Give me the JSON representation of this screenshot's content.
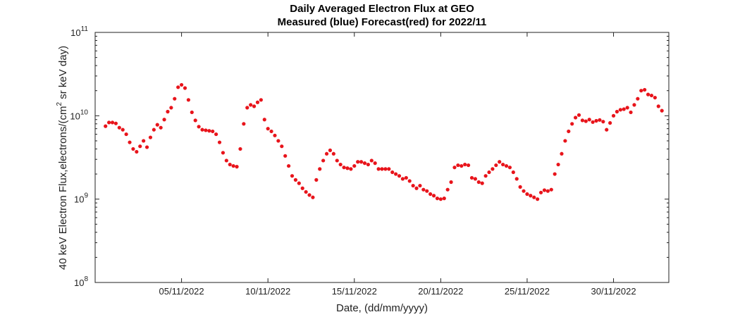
{
  "chart_data": {
    "type": "scatter",
    "title": "Daily Averaged Electron Flux at GEO",
    "subtitle": "Measured (blue) Forecast(red) for 2022/11",
    "xlabel": "Date, (dd/mm/yyyy)",
    "ylabel_main": "40 keV Electron Flux,electrons/(cm",
    "ylabel_sup": "2",
    "ylabel_tail": " sr keV day)",
    "y_scale": "log",
    "ylim": [
      100000000.0,
      100000000000.0
    ],
    "xlim": [
      0.6,
      32.8
    ],
    "x_unit": "day of November 2022",
    "grid": false,
    "y_ticks": [
      {
        "value": 100000000.0,
        "base": "10",
        "exp": "8"
      },
      {
        "value": 1000000000.0,
        "base": "10",
        "exp": "9"
      },
      {
        "value": 10000000000.0,
        "base": "10",
        "exp": "10"
      },
      {
        "value": 100000000000.0,
        "base": "10",
        "exp": "11"
      }
    ],
    "x_ticks": [
      {
        "value": 5,
        "label": "05/11/2022"
      },
      {
        "value": 10,
        "label": "10/11/2022"
      },
      {
        "value": 15,
        "label": "15/11/2022"
      },
      {
        "value": 20,
        "label": "20/11/2022"
      },
      {
        "value": 25,
        "label": "25/11/2022"
      },
      {
        "value": 30,
        "label": "30/11/2022"
      }
    ],
    "series": [
      {
        "color": "#e8141b",
        "marker": "dot",
        "points": [
          [
            0.6,
            7500000000.0
          ],
          [
            0.8,
            8300000000.0
          ],
          [
            1.0,
            8300000000.0
          ],
          [
            1.2,
            8100000000.0
          ],
          [
            1.4,
            7200000000.0
          ],
          [
            1.6,
            6800000000.0
          ],
          [
            1.8,
            6000000000.0
          ],
          [
            2.0,
            4800000000.0
          ],
          [
            2.2,
            4000000000.0
          ],
          [
            2.4,
            3700000000.0
          ],
          [
            2.6,
            4300000000.0
          ],
          [
            2.8,
            5000000000.0
          ],
          [
            3.0,
            4200000000.0
          ],
          [
            3.2,
            5500000000.0
          ],
          [
            3.4,
            6800000000.0
          ],
          [
            3.6,
            7800000000.0
          ],
          [
            3.8,
            7200000000.0
          ],
          [
            4.0,
            9000000000.0
          ],
          [
            4.2,
            11200000000.0
          ],
          [
            4.4,
            12500000000.0
          ],
          [
            4.6,
            16000000000.0
          ],
          [
            4.8,
            22000000000.0
          ],
          [
            5.0,
            23500000000.0
          ],
          [
            5.2,
            21500000000.0
          ],
          [
            5.4,
            15500000000.0
          ],
          [
            5.6,
            11000000000.0
          ],
          [
            5.8,
            8800000000.0
          ],
          [
            6.0,
            7400000000.0
          ],
          [
            6.2,
            6800000000.0
          ],
          [
            6.4,
            6700000000.0
          ],
          [
            6.6,
            6600000000.0
          ],
          [
            6.8,
            6500000000.0
          ],
          [
            7.0,
            6000000000.0
          ],
          [
            7.2,
            4800000000.0
          ],
          [
            7.4,
            3600000000.0
          ],
          [
            7.6,
            2900000000.0
          ],
          [
            7.8,
            2600000000.0
          ],
          [
            8.0,
            2500000000.0
          ],
          [
            8.2,
            2450000000.0
          ],
          [
            8.4,
            4000000000.0
          ],
          [
            8.6,
            8000000000.0
          ],
          [
            8.8,
            12500000000.0
          ],
          [
            9.0,
            13500000000.0
          ],
          [
            9.2,
            13000000000.0
          ],
          [
            9.4,
            14500000000.0
          ],
          [
            9.6,
            15500000000.0
          ],
          [
            9.8,
            9000000000.0
          ],
          [
            10.0,
            7000000000.0
          ],
          [
            10.2,
            6500000000.0
          ],
          [
            10.4,
            5800000000.0
          ],
          [
            10.6,
            5000000000.0
          ],
          [
            10.8,
            4300000000.0
          ],
          [
            11.0,
            3300000000.0
          ],
          [
            11.2,
            2500000000.0
          ],
          [
            11.4,
            1900000000.0
          ],
          [
            11.6,
            1700000000.0
          ],
          [
            11.8,
            1550000000.0
          ],
          [
            12.0,
            1350000000.0
          ],
          [
            12.2,
            1220000000.0
          ],
          [
            12.4,
            1120000000.0
          ],
          [
            12.6,
            1050000000.0
          ],
          [
            12.8,
            1700000000.0
          ],
          [
            13.0,
            2300000000.0
          ],
          [
            13.2,
            2900000000.0
          ],
          [
            13.4,
            3500000000.0
          ],
          [
            13.6,
            3850000000.0
          ],
          [
            13.8,
            3500000000.0
          ],
          [
            14.0,
            2900000000.0
          ],
          [
            14.2,
            2600000000.0
          ],
          [
            14.4,
            2400000000.0
          ],
          [
            14.6,
            2350000000.0
          ],
          [
            14.8,
            2300000000.0
          ],
          [
            15.0,
            2500000000.0
          ],
          [
            15.2,
            2800000000.0
          ],
          [
            15.4,
            2800000000.0
          ],
          [
            15.6,
            2700000000.0
          ],
          [
            15.8,
            2600000000.0
          ],
          [
            16.0,
            2900000000.0
          ],
          [
            16.2,
            2700000000.0
          ],
          [
            16.4,
            2300000000.0
          ],
          [
            16.6,
            2300000000.0
          ],
          [
            16.8,
            2300000000.0
          ],
          [
            17.0,
            2300000000.0
          ],
          [
            17.2,
            2100000000.0
          ],
          [
            17.4,
            2000000000.0
          ],
          [
            17.6,
            1900000000.0
          ],
          [
            17.8,
            1750000000.0
          ],
          [
            18.0,
            1800000000.0
          ],
          [
            18.2,
            1650000000.0
          ],
          [
            18.4,
            1450000000.0
          ],
          [
            18.6,
            1350000000.0
          ],
          [
            18.8,
            1450000000.0
          ],
          [
            19.0,
            1300000000.0
          ],
          [
            19.2,
            1250000000.0
          ],
          [
            19.4,
            1150000000.0
          ],
          [
            19.6,
            1100000000.0
          ],
          [
            19.8,
            1020000000.0
          ],
          [
            20.0,
            1000000000.0
          ],
          [
            20.2,
            1020000000.0
          ],
          [
            20.4,
            1300000000.0
          ],
          [
            20.6,
            1600000000.0
          ],
          [
            20.8,
            2400000000.0
          ],
          [
            21.0,
            2550000000.0
          ],
          [
            21.2,
            2500000000.0
          ],
          [
            21.4,
            2600000000.0
          ],
          [
            21.6,
            2550000000.0
          ],
          [
            21.8,
            1800000000.0
          ],
          [
            22.0,
            1750000000.0
          ],
          [
            22.2,
            1600000000.0
          ],
          [
            22.4,
            1550000000.0
          ],
          [
            22.6,
            1900000000.0
          ],
          [
            22.8,
            2100000000.0
          ],
          [
            23.0,
            2300000000.0
          ],
          [
            23.2,
            2550000000.0
          ],
          [
            23.4,
            2800000000.0
          ],
          [
            23.6,
            2600000000.0
          ],
          [
            23.8,
            2500000000.0
          ],
          [
            24.0,
            2400000000.0
          ],
          [
            24.2,
            2100000000.0
          ],
          [
            24.4,
            1750000000.0
          ],
          [
            24.6,
            1400000000.0
          ],
          [
            24.8,
            1250000000.0
          ],
          [
            25.0,
            1150000000.0
          ],
          [
            25.2,
            1100000000.0
          ],
          [
            25.4,
            1050000000.0
          ],
          [
            25.6,
            1000000000.0
          ],
          [
            25.8,
            1200000000.0
          ],
          [
            26.0,
            1280000000.0
          ],
          [
            26.2,
            1250000000.0
          ],
          [
            26.4,
            1300000000.0
          ],
          [
            26.6,
            2000000000.0
          ],
          [
            26.8,
            2600000000.0
          ],
          [
            27.0,
            3500000000.0
          ],
          [
            27.2,
            5000000000.0
          ],
          [
            27.4,
            6500000000.0
          ],
          [
            27.6,
            8000000000.0
          ],
          [
            27.8,
            9500000000.0
          ],
          [
            28.0,
            10200000000.0
          ],
          [
            28.2,
            8800000000.0
          ],
          [
            28.4,
            8600000000.0
          ],
          [
            28.6,
            9000000000.0
          ],
          [
            28.8,
            8400000000.0
          ],
          [
            29.0,
            8700000000.0
          ],
          [
            29.2,
            8900000000.0
          ],
          [
            29.4,
            8500000000.0
          ],
          [
            29.6,
            6800000000.0
          ],
          [
            29.8,
            8200000000.0
          ],
          [
            30.0,
            10000000000.0
          ],
          [
            30.2,
            11200000000.0
          ],
          [
            30.4,
            11800000000.0
          ],
          [
            30.6,
            12000000000.0
          ],
          [
            30.8,
            12500000000.0
          ],
          [
            31.0,
            11000000000.0
          ],
          [
            31.2,
            13500000000.0
          ],
          [
            31.4,
            16000000000.0
          ],
          [
            31.6,
            20000000000.0
          ],
          [
            31.8,
            20500000000.0
          ],
          [
            32.0,
            18000000000.0
          ],
          [
            32.2,
            17500000000.0
          ],
          [
            32.4,
            16500000000.0
          ],
          [
            32.6,
            13000000000.0
          ],
          [
            32.8,
            11500000000.0
          ]
        ]
      }
    ]
  }
}
